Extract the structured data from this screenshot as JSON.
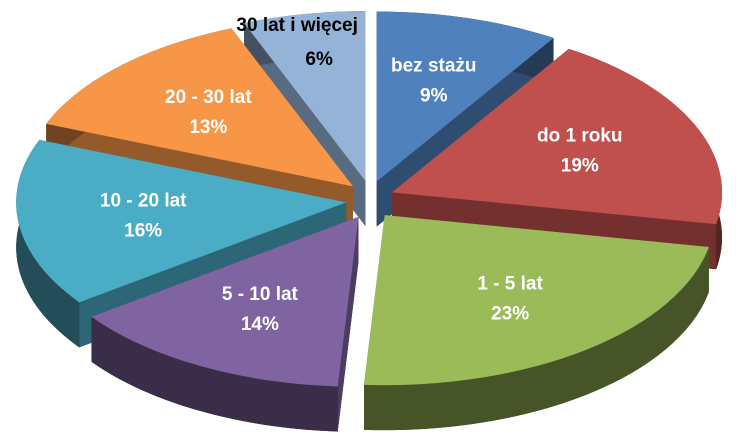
{
  "chart_data": {
    "type": "pie3d",
    "categories": [
      "bez stażu",
      "do 1 roku",
      "1 - 5 lat",
      "5 - 10 lat",
      "10 - 20 lat",
      "20 - 30 lat",
      "30 lat i więcej"
    ],
    "values": [
      9,
      19,
      23,
      14,
      16,
      13,
      6
    ],
    "value_labels": [
      "9%",
      "19%",
      "23%",
      "14%",
      "16%",
      "13%",
      "6%"
    ],
    "colors": [
      "#4f81bd",
      "#c0504d",
      "#9bbb59",
      "#8064a2",
      "#4bacc6",
      "#f79646",
      "#95b3d7"
    ]
  }
}
